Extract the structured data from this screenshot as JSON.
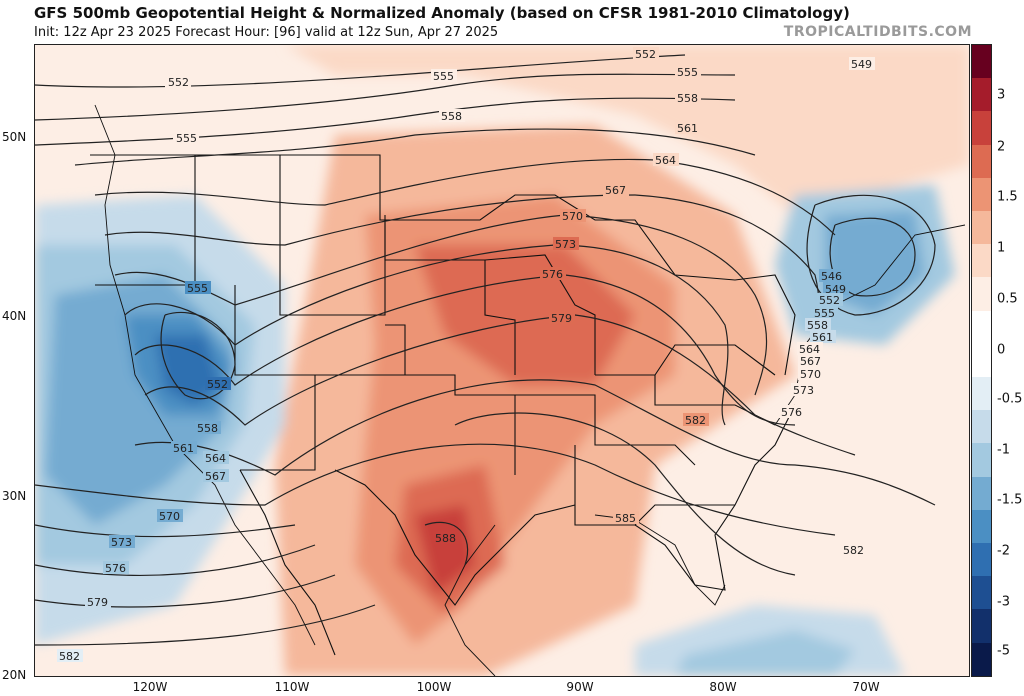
{
  "header": {
    "title": "GFS 500mb Geopotential Height & Normalized Anomaly (based on CFSR 1981-2010 Climatology)",
    "subtitle": "Init: 12z Apr 23 2025   Forecast Hour: [96]   valid at 12z Sun, Apr 27 2025",
    "credit": "TROPICALTIDBITS.COM"
  },
  "axes": {
    "lat_labels": [
      "50N",
      "40N",
      "30N",
      "20N"
    ],
    "lon_labels": [
      "120W",
      "110W",
      "100W",
      "90W",
      "80W",
      "70W"
    ]
  },
  "colorbar": {
    "ticks": [
      "3",
      "2",
      "1.5",
      "1",
      "0.5",
      "0",
      "-0.5",
      "-1",
      "-1.5",
      "-2",
      "-3",
      "-5"
    ],
    "colors": [
      "#67001f",
      "#a51c2b",
      "#c8413b",
      "#dd6b52",
      "#ec9474",
      "#f5b89b",
      "#fbd9c6",
      "#fdeee5",
      "#ffffff",
      "#ffffff",
      "#e3eef5",
      "#c6dbea",
      "#a3c9e0",
      "#74abd1",
      "#4b8fc3",
      "#2f6fb1",
      "#1e4f92",
      "#12306b",
      "#0a1a4a"
    ]
  },
  "contours": {
    "labels": [
      "552",
      "555",
      "558",
      "561",
      "564",
      "567",
      "570",
      "573",
      "576",
      "579",
      "582",
      "585",
      "588",
      "546",
      "549"
    ]
  },
  "colors": {
    "positive_anomaly": "#e07b60",
    "negative_anomaly": "#4d8fc6",
    "contour_line": "#222222",
    "border_line": "#111111"
  }
}
